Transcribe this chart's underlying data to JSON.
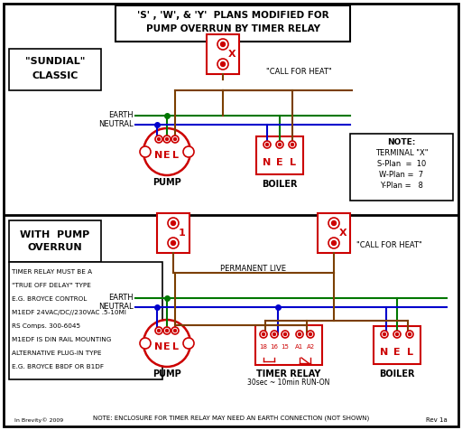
{
  "title_line1": "'S' , 'W', & 'Y'  PLANS MODIFIED FOR",
  "title_line2": "PUMP OVERRUN BY TIMER RELAY",
  "bg_color": "#ffffff",
  "border_color": "#000000",
  "red": "#cc0000",
  "green": "#007700",
  "blue": "#0000cc",
  "brown": "#7B3F00",
  "section1_label_line1": "\"SUNDIAL\"",
  "section1_label_line2": "CLASSIC",
  "section2_label_line1": "WITH  PUMP",
  "section2_label_line2": "OVERRUN",
  "timer_note_lines": [
    "TIMER RELAY MUST BE A",
    "\"TRUE OFF DELAY\" TYPE",
    "E.G. BROYCE CONTROL",
    "M1EDF 24VAC/DC//230VAC .5-10MI",
    "RS Comps. 300-6045",
    "M1EDF IS DIN RAIL MOUNTING",
    "ALTERNATIVE PLUG-IN TYPE",
    "E.G. BROYCE B8DF OR B1DF"
  ],
  "bottom_note": "NOTE: ENCLOSURE FOR TIMER RELAY MAY NEED AN EARTH CONNECTION (NOT SHOWN)"
}
